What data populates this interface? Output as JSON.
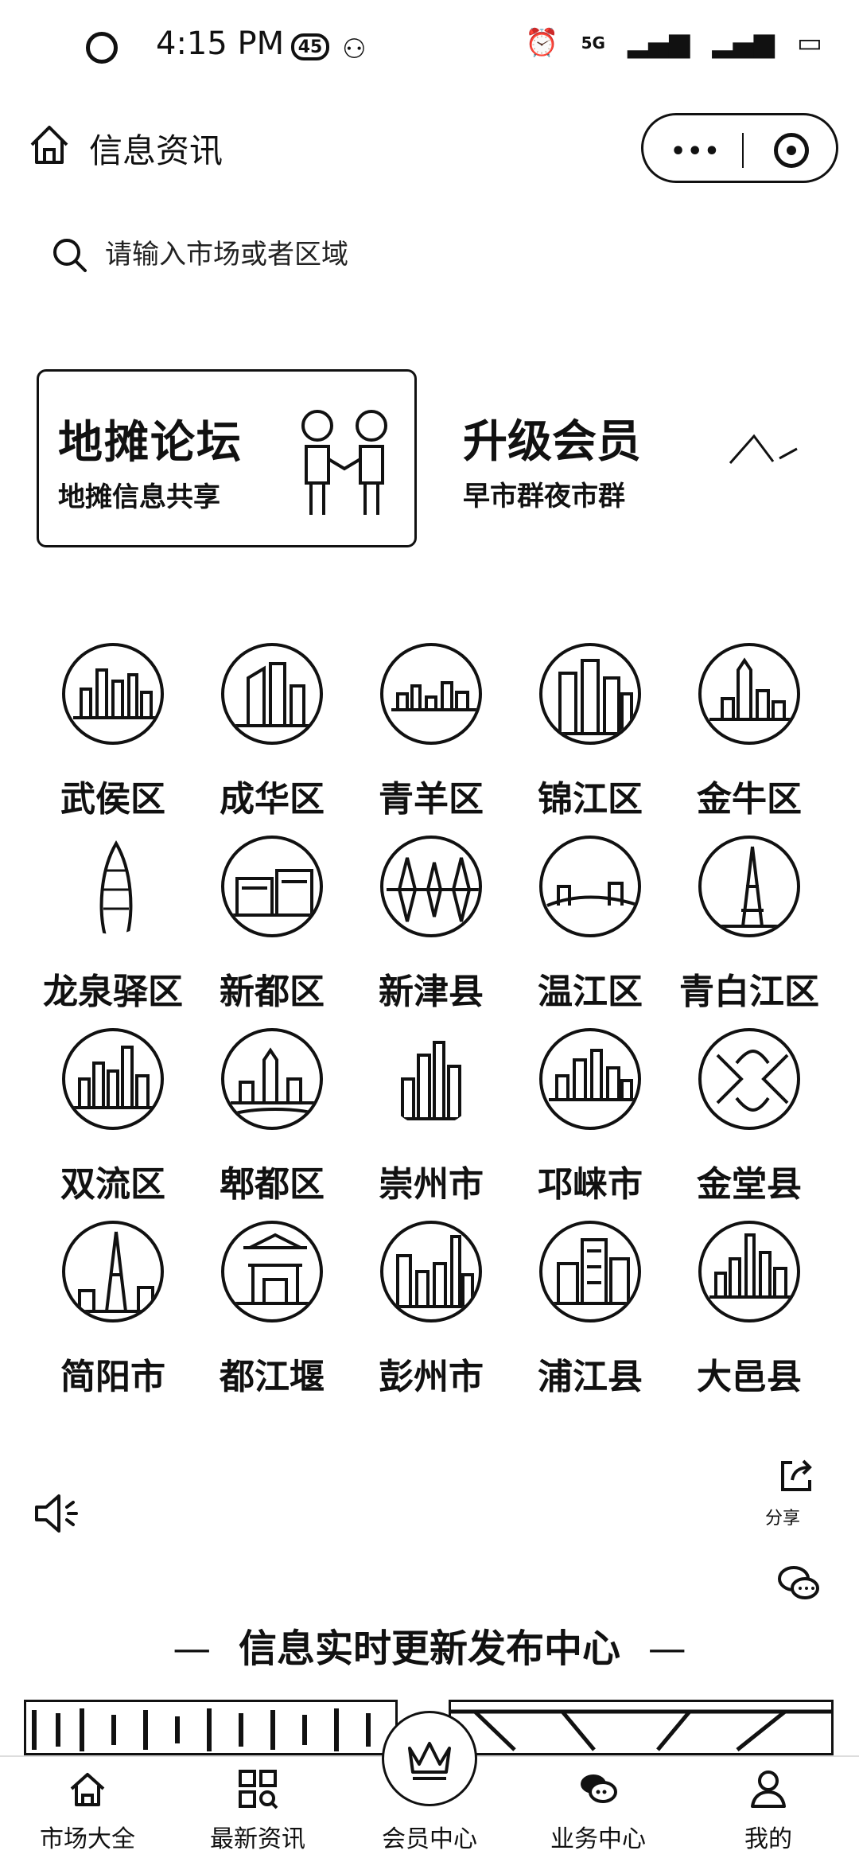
{
  "status_bar": {
    "time": "4:15 PM",
    "badge": "45",
    "network": "5G"
  },
  "header": {
    "title": "信息资讯",
    "more_label": "•••"
  },
  "search": {
    "placeholder": "请输入市场或者区域"
  },
  "banners": {
    "forum": {
      "title": "地摊论坛",
      "subtitle": "地摊信息共享"
    },
    "vip": {
      "title": "升级会员",
      "subtitle": "早市群夜市群"
    }
  },
  "districts": [
    "武侯区",
    "成华区",
    "青羊区",
    "锦江区",
    "金牛区",
    "龙泉驿区",
    "新都区",
    "新津县",
    "温江区",
    "青白江区",
    "双流区",
    "郫都区",
    "崇州市",
    "邛崃市",
    "金堂县",
    "简阳市",
    "都江堰",
    "彭州市",
    "浦江县",
    "大邑县"
  ],
  "side": {
    "share_label": "分享"
  },
  "section": {
    "title": "信息实时更新发布中心",
    "dash": "—"
  },
  "bottom_nav": [
    {
      "label": "市场大全",
      "icon": "home-icon"
    },
    {
      "label": "最新资讯",
      "icon": "grid-search-icon"
    },
    {
      "label": "会员中心",
      "icon": "crown-icon"
    },
    {
      "label": "业务中心",
      "icon": "chat-bubbles-icon"
    },
    {
      "label": "我的",
      "icon": "user-icon"
    }
  ]
}
